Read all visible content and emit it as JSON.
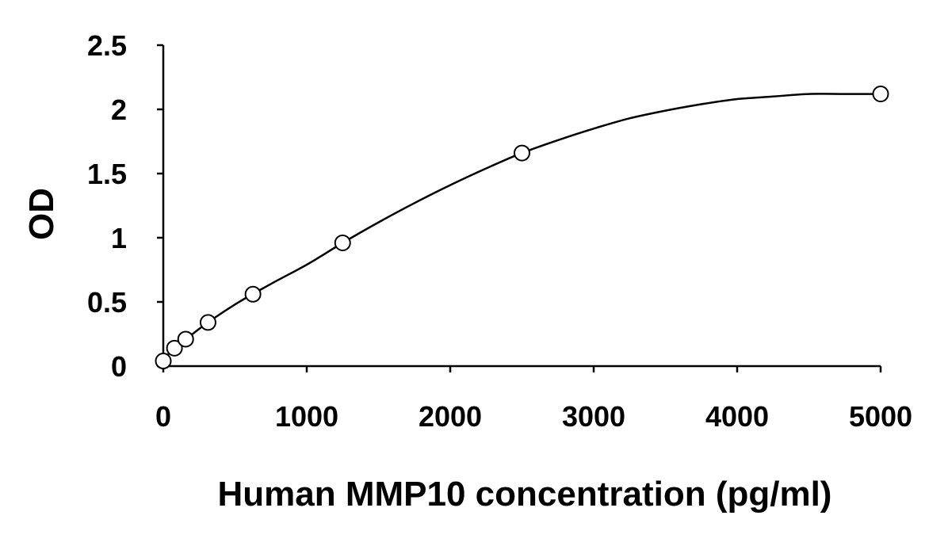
{
  "chart_data": {
    "type": "scatter",
    "title": "",
    "xlabel": "Human MMP10 concentration (pg/ml)",
    "ylabel": "OD",
    "xlim": [
      0,
      5000
    ],
    "ylim": [
      0,
      2.5
    ],
    "x_ticks": [
      "0",
      "1000",
      "2000",
      "3000",
      "4000",
      "5000"
    ],
    "y_ticks": [
      "0",
      "0.5",
      "1",
      "1.5",
      "2",
      "2.5"
    ],
    "grid": false,
    "legend": false,
    "points": {
      "x": [
        0,
        78,
        156,
        312,
        625,
        1250,
        2500,
        5000
      ],
      "y": [
        0.04,
        0.14,
        0.21,
        0.34,
        0.56,
        0.96,
        1.66,
        2.12
      ]
    },
    "fit_curve": {
      "x": [
        0,
        250,
        500,
        750,
        1000,
        1250,
        1500,
        1750,
        2000,
        2250,
        2500,
        2750,
        3000,
        3250,
        3500,
        3750,
        4000,
        4250,
        4500,
        4750,
        5000
      ],
      "y": [
        0.06,
        0.29,
        0.48,
        0.64,
        0.79,
        0.96,
        1.12,
        1.27,
        1.41,
        1.54,
        1.66,
        1.76,
        1.85,
        1.93,
        1.99,
        2.04,
        2.08,
        2.1,
        2.12,
        2.12,
        2.12
      ]
    },
    "colors": {
      "axis": "#000000",
      "line": "#000000",
      "marker_fill": "#ffffff"
    }
  }
}
